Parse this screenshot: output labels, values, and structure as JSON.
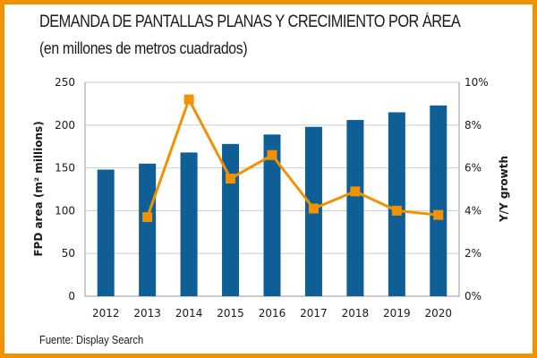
{
  "title": "DEMANDA DE PANTALLAS PLANAS Y CRECIMIENTO POR ÁREA",
  "subtitle": "(en millones de metros cuadrados)",
  "source": "Fuente: Display Search",
  "colors": {
    "frame": "#f39200",
    "bars": "#0f5f96",
    "line": "#f39200",
    "grid": "#cccccc"
  },
  "chart_data": {
    "type": "bar",
    "categories": [
      "2012",
      "2013",
      "2014",
      "2015",
      "2016",
      "2017",
      "2018",
      "2019",
      "2020"
    ],
    "series": [
      {
        "name": "FPD area",
        "type": "bar",
        "axis": "left",
        "values": [
          148,
          155,
          168,
          178,
          189,
          198,
          206,
          215,
          223
        ]
      },
      {
        "name": "Y/Y growth",
        "type": "line",
        "axis": "right",
        "values": [
          null,
          3.7,
          9.2,
          5.5,
          6.6,
          4.1,
          4.9,
          4.0,
          3.8
        ]
      }
    ],
    "ylabel": "FPD area (m² millions)",
    "y2label": "Y/Y growth",
    "ylim": [
      0,
      250
    ],
    "yticks": [
      0,
      50,
      100,
      150,
      200,
      250
    ],
    "ytick_labels": [
      "0",
      "50",
      "100",
      "150",
      "200",
      "250"
    ],
    "y2lim": [
      0,
      10
    ],
    "y2ticks": [
      0,
      2,
      4,
      6,
      8,
      10
    ],
    "y2tick_labels": [
      "0%",
      "2%",
      "4%",
      "6%",
      "8%",
      "10%"
    ],
    "grid": true,
    "legend": "none"
  }
}
